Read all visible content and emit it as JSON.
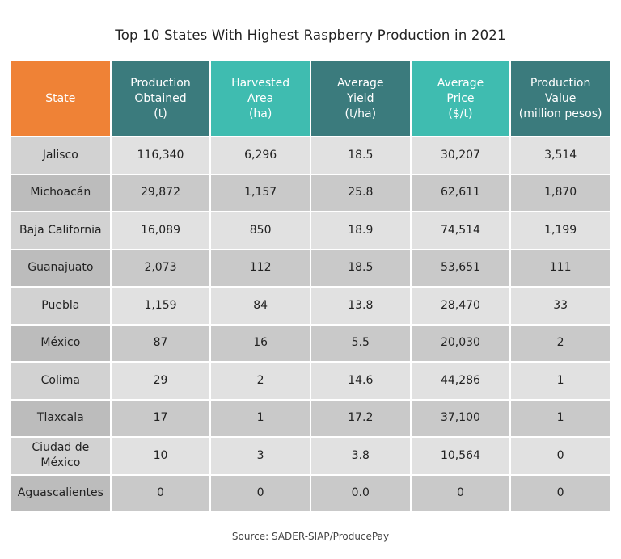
{
  "title": "Top 10 States With Highest Raspberry Production in 2021",
  "table": {
    "header": [
      [
        "State"
      ],
      [
        "Production",
        "Obtained",
        "(t)"
      ],
      [
        "Harvested",
        "Area",
        "(ha)"
      ],
      [
        "Average",
        "Yield",
        "(t/ha)"
      ],
      [
        "Average",
        "Price",
        "($/t)"
      ],
      [
        "Production",
        "Value",
        "(million pesos)"
      ]
    ],
    "rows": [
      [
        "Jalisco",
        "116,340",
        "6,296",
        "18.5",
        "30,207",
        "3,514"
      ],
      [
        "Michoacán",
        "29,872",
        "1,157",
        "25.8",
        "62,611",
        "1,870"
      ],
      [
        "Baja California",
        "16,089",
        "850",
        "18.9",
        "74,514",
        "1,199"
      ],
      [
        "Guanajuato",
        "2,073",
        "112",
        "18.5",
        "53,651",
        "111"
      ],
      [
        "Puebla",
        "1,159",
        "84",
        "13.8",
        "28,470",
        "33"
      ],
      [
        "México",
        "87",
        "16",
        "5.5",
        "20,030",
        "2"
      ],
      [
        "Colima",
        "29",
        "2",
        "14.6",
        "44,286",
        "1"
      ],
      [
        "Tlaxcala",
        "17",
        "1",
        "17.2",
        "37,100",
        "1"
      ],
      [
        [
          "Ciudad de",
          "México"
        ],
        "10",
        "3",
        "3.8",
        "10,564",
        "0"
      ],
      [
        "Aguascalientes",
        "0",
        "0",
        "0.0",
        "0",
        "0"
      ]
    ]
  },
  "source": "Source: SADER-SIAP/ProducePay"
}
